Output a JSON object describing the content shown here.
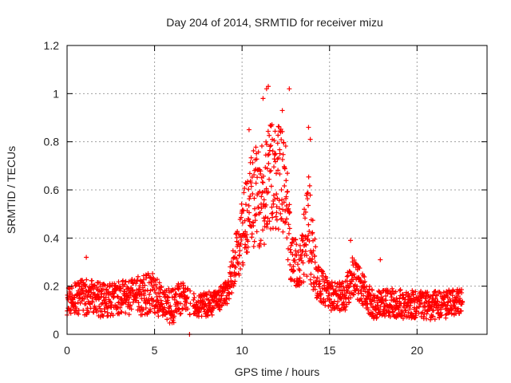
{
  "chart_data": {
    "type": "scatter",
    "title": "Day 204 of 2014, SRMTID for receiver mizu",
    "xlabel": "GPS time / hours",
    "ylabel": "SRMTID / TECUs",
    "xlim": [
      0,
      24
    ],
    "ylim": [
      0,
      1.2
    ],
    "xticks": [
      0,
      5,
      10,
      15,
      20
    ],
    "xtick_labels": [
      "0",
      "5",
      "10",
      "15",
      "20"
    ],
    "yticks": [
      0,
      0.2,
      0.4,
      0.6,
      0.8,
      1.0,
      1.2
    ],
    "ytick_labels": [
      "0",
      "0.2",
      "0.4",
      "0.6",
      "0.8",
      "1",
      "1.2"
    ],
    "grid": true,
    "marker": "+",
    "series": [
      {
        "name": "SRMTID",
        "color": "#ff0000",
        "profile": [
          {
            "x": 0.0,
            "y": 0.14,
            "spread": 0.06
          },
          {
            "x": 1.0,
            "y": 0.16,
            "spread": 0.08
          },
          {
            "x": 2.0,
            "y": 0.14,
            "spread": 0.07
          },
          {
            "x": 3.0,
            "y": 0.15,
            "spread": 0.07
          },
          {
            "x": 4.0,
            "y": 0.16,
            "spread": 0.08
          },
          {
            "x": 5.0,
            "y": 0.17,
            "spread": 0.09
          },
          {
            "x": 5.5,
            "y": 0.12,
            "spread": 0.06
          },
          {
            "x": 6.0,
            "y": 0.12,
            "spread": 0.08
          },
          {
            "x": 6.5,
            "y": 0.15,
            "spread": 0.07
          },
          {
            "x": 7.5,
            "y": 0.12,
            "spread": 0.05
          },
          {
            "x": 8.5,
            "y": 0.13,
            "spread": 0.05
          },
          {
            "x": 9.2,
            "y": 0.18,
            "spread": 0.05
          },
          {
            "x": 9.6,
            "y": 0.3,
            "spread": 0.1
          },
          {
            "x": 10.0,
            "y": 0.42,
            "spread": 0.14
          },
          {
            "x": 10.5,
            "y": 0.55,
            "spread": 0.2
          },
          {
            "x": 11.0,
            "y": 0.58,
            "spread": 0.22
          },
          {
            "x": 11.5,
            "y": 0.62,
            "spread": 0.24
          },
          {
            "x": 12.0,
            "y": 0.68,
            "spread": 0.26
          },
          {
            "x": 12.5,
            "y": 0.6,
            "spread": 0.22
          },
          {
            "x": 12.8,
            "y": 0.32,
            "spread": 0.12
          },
          {
            "x": 13.3,
            "y": 0.28,
            "spread": 0.1
          },
          {
            "x": 13.8,
            "y": 0.45,
            "spread": 0.22
          },
          {
            "x": 14.3,
            "y": 0.22,
            "spread": 0.08
          },
          {
            "x": 15.0,
            "y": 0.16,
            "spread": 0.06
          },
          {
            "x": 15.8,
            "y": 0.15,
            "spread": 0.07
          },
          {
            "x": 16.3,
            "y": 0.24,
            "spread": 0.08
          },
          {
            "x": 16.8,
            "y": 0.2,
            "spread": 0.07
          },
          {
            "x": 17.5,
            "y": 0.12,
            "spread": 0.06
          },
          {
            "x": 18.5,
            "y": 0.13,
            "spread": 0.06
          },
          {
            "x": 20.0,
            "y": 0.12,
            "spread": 0.06
          },
          {
            "x": 21.0,
            "y": 0.12,
            "spread": 0.06
          },
          {
            "x": 22.0,
            "y": 0.13,
            "spread": 0.06
          },
          {
            "x": 22.6,
            "y": 0.14,
            "spread": 0.05
          }
        ],
        "outliers": [
          [
            11.4,
            1.02
          ],
          [
            11.5,
            1.03
          ],
          [
            12.7,
            1.02
          ],
          [
            11.2,
            0.98
          ],
          [
            13.8,
            0.86
          ],
          [
            13.9,
            0.81
          ],
          [
            10.4,
            0.85
          ],
          [
            12.3,
            0.93
          ],
          [
            16.2,
            0.39
          ],
          [
            1.1,
            0.32
          ],
          [
            17.9,
            0.31
          ],
          [
            7.0,
            0.0
          ]
        ],
        "gaps": [
          [
            6.9,
            7.0
          ],
          [
            7.05,
            7.2
          ]
        ]
      }
    ]
  }
}
